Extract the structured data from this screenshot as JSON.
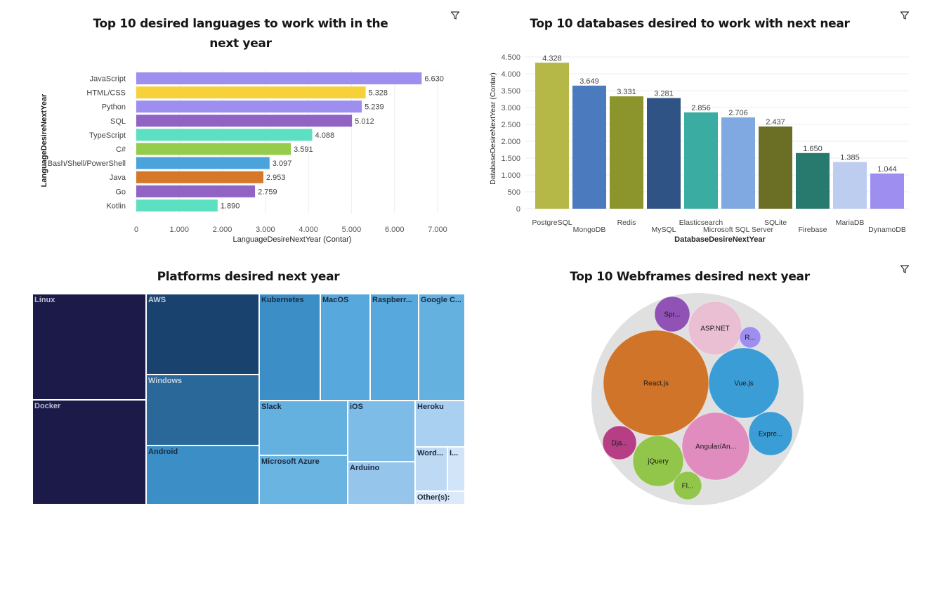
{
  "charts": {
    "languages": {
      "title_line1": "Top 10 desired languages to work with in the",
      "title_line2": "next year",
      "filter_icon": "filter-icon"
    },
    "databases": {
      "title": "Top 10 databases desired to work with next near",
      "filter_icon": "filter-icon"
    },
    "platforms": {
      "title": "Platforms desired next year"
    },
    "webframes": {
      "title": "Top 10 Webframes desired next year",
      "filter_icon": "filter-icon"
    }
  },
  "chart_data": [
    {
      "type": "bar",
      "orientation": "horizontal",
      "title": "Top 10 desired languages to work with in the next year",
      "xlabel": "LanguageDesireNextYear (Contar)",
      "ylabel": "LanguageDesireNextYear",
      "categories": [
        "JavaScript",
        "HTML/CSS",
        "Python",
        "SQL",
        "TypeScript",
        "C#",
        "Bash/Shell/PowerShell",
        "Java",
        "Go",
        "Kotlin"
      ],
      "values": [
        6630,
        5328,
        5239,
        5012,
        4088,
        3591,
        3097,
        2953,
        2759,
        1890
      ],
      "value_labels": [
        "6.630",
        "5.328",
        "5.239",
        "5.012",
        "4.088",
        "3.591",
        "3.097",
        "2.953",
        "2.759",
        "1.890"
      ],
      "colors": [
        "#9d8ef0",
        "#f6d13a",
        "#9d8ef0",
        "#9164c4",
        "#5ddfc1",
        "#95cc4c",
        "#4ba3db",
        "#d5782a",
        "#9164c4",
        "#5ddfc1"
      ],
      "xlim": [
        0,
        7000
      ],
      "xticks": [
        0,
        1000,
        2000,
        3000,
        4000,
        5000,
        6000,
        7000
      ],
      "xtick_labels": [
        "0",
        "1.000",
        "2.000",
        "3.000",
        "4.000",
        "5.000",
        "6.000",
        "7.000"
      ],
      "grid": true
    },
    {
      "type": "bar",
      "orientation": "vertical",
      "title": "Top 10 databases desired to work with next near",
      "xlabel": "DatabaseDesireNextYear",
      "ylabel": "DatabaseDesireNextYear (Contar)",
      "categories": [
        "PostgreSQL",
        "MongoDB",
        "Redis",
        "MySQL",
        "Elasticsearch",
        "Microsoft SQL Server",
        "SQLite",
        "Firebase",
        "MariaDB",
        "DynamoDB"
      ],
      "values": [
        4328,
        3649,
        3331,
        3281,
        2856,
        2706,
        2437,
        1650,
        1385,
        1044
      ],
      "value_labels": [
        "4.328",
        "3.649",
        "3.331",
        "3.281",
        "2.856",
        "2.706",
        "2.437",
        "1.650",
        "1.385",
        "1.044"
      ],
      "colors": [
        "#b5b846",
        "#4c7abe",
        "#8c952c",
        "#2f5384",
        "#3aaca1",
        "#80a8e1",
        "#6b6f26",
        "#287a6e",
        "#bdcdf0",
        "#9d8ef0"
      ],
      "ylim": [
        0,
        4500
      ],
      "yticks": [
        0,
        500,
        1000,
        1500,
        2000,
        2500,
        3000,
        3500,
        4000,
        4500
      ],
      "ytick_labels": [
        "0",
        "500",
        "1.000",
        "1.500",
        "2.000",
        "2.500",
        "3.000",
        "3.500",
        "4.000",
        "4.500"
      ],
      "grid": true
    },
    {
      "type": "treemap",
      "title": "Platforms desired next year",
      "labels": [
        "Linux",
        "Docker",
        "AWS",
        "Windows",
        "Android",
        "Kubernetes",
        "MacOS",
        "Raspberr...",
        "Google C...",
        "Slack",
        "Microsoft Azure",
        "iOS",
        "Arduino",
        "Heroku",
        "Word...",
        "I...",
        "Other(s):"
      ],
      "colors": [
        "#1b1a48",
        "#1b1a48",
        "#19426e",
        "#296898",
        "#3b8ec6",
        "#3b8ec6",
        "#57a8dc",
        "#57a8dc",
        "#64b0df",
        "#64b0df",
        "#6ab4e2",
        "#7cbce7",
        "#96c5ec",
        "#a9d0f1",
        "#bed9f4",
        "#d1e4f8",
        "#dce9f9"
      ],
      "label_colors": [
        "#b7bdd0",
        "#b7bdd0",
        "#c6d3e0",
        "#c6d3e0",
        "#1b2a40",
        "#1b2a40",
        "#1b2a40",
        "#1b2a40",
        "#1b2a40",
        "#1b2a40",
        "#1b2a40",
        "#1b2a40",
        "#1b2a40",
        "#1b2a40",
        "#1b2a40",
        "#1b2a40",
        "#1b2a40"
      ]
    },
    {
      "type": "bubble",
      "title": "Top 10 Webframes desired next year",
      "labels": [
        "React.js",
        "Angular/An...",
        "Vue.js",
        "ASP.NET",
        "Expre...",
        "jQuery",
        "Dja...",
        "Spr...",
        "Fl...",
        "R..."
      ],
      "colors": [
        "#d0742a",
        "#e08cbf",
        "#3b9dd6",
        "#eabfd3",
        "#3b9dd6",
        "#92c64a",
        "#b73e85",
        "#9052b4",
        "#92c64a",
        "#9d8ef0"
      ]
    }
  ]
}
